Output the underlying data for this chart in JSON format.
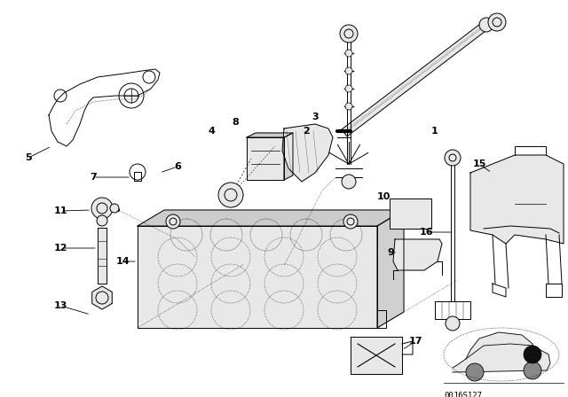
{
  "bg_color": "#ffffff",
  "part_color": "#000000",
  "diagram_id": "00J6S127",
  "fig_width": 6.4,
  "fig_height": 4.48,
  "lw": 0.7
}
